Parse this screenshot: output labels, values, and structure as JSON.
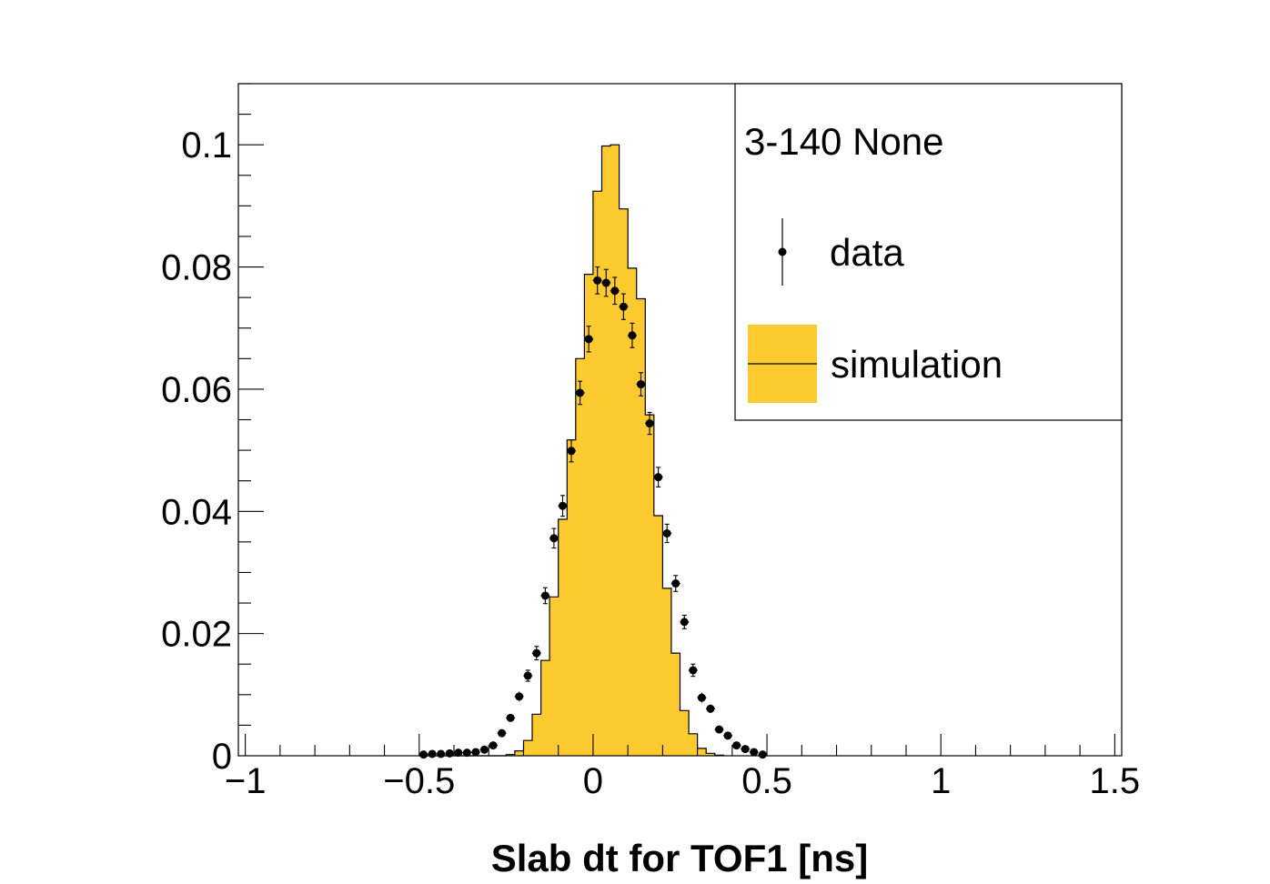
{
  "chart_data": {
    "type": "bar",
    "xlabel": "Slab dt for TOF1 [ns]",
    "ylabel": "",
    "xlim": [
      -1.02,
      1.52
    ],
    "ylim": [
      0,
      0.11
    ],
    "x_ticks": [
      -1,
      -0.5,
      0,
      0.5,
      1,
      1.5
    ],
    "x_tick_labels": [
      "−1",
      "−0.5",
      "0",
      "0.5",
      "1",
      "1.5"
    ],
    "y_ticks": [
      0,
      0.02,
      0.04,
      0.06,
      0.08,
      0.1
    ],
    "y_tick_labels": [
      "0",
      "0.02",
      "0.04",
      "0.06",
      "0.08",
      "0.1"
    ],
    "legend": {
      "title": "3-140 None",
      "position": "top-right",
      "entries": [
        "data",
        "simulation"
      ]
    },
    "bin_width": 0.025,
    "simulation": {
      "name": "simulation",
      "color": "#FDCA30",
      "edges_start": -0.5,
      "values": [
        0,
        0,
        0,
        0,
        0,
        0,
        0,
        0,
        0,
        0,
        0.0002,
        0.0008,
        0.0025,
        0.0068,
        0.0156,
        0.026,
        0.0387,
        0.0517,
        0.065,
        0.0788,
        0.0924,
        0.0998,
        0.1,
        0.0895,
        0.0798,
        0.0748,
        0.0558,
        0.0393,
        0.0274,
        0.0168,
        0.0074,
        0.0036,
        0.0012,
        0.0004,
        0.0001
      ]
    },
    "data": {
      "name": "data",
      "color": "#000000",
      "x": [
        -0.4875,
        -0.4625,
        -0.4375,
        -0.4125,
        -0.3875,
        -0.3625,
        -0.3375,
        -0.3125,
        -0.2875,
        -0.2625,
        -0.2375,
        -0.2125,
        -0.1875,
        -0.1625,
        -0.1375,
        -0.1125,
        -0.0875,
        -0.0625,
        -0.0375,
        -0.0125,
        0.0125,
        0.0375,
        0.0625,
        0.0875,
        0.1125,
        0.1375,
        0.1625,
        0.1875,
        0.2125,
        0.2375,
        0.2625,
        0.2875,
        0.3125,
        0.3375,
        0.3625,
        0.3875,
        0.4125,
        0.4375,
        0.4625,
        0.4875
      ],
      "y": [
        0.0002,
        0.0003,
        0.0003,
        0.0004,
        0.0005,
        0.0005,
        0.0006,
        0.001,
        0.0017,
        0.0037,
        0.0062,
        0.0097,
        0.0131,
        0.0168,
        0.0262,
        0.0356,
        0.0409,
        0.0499,
        0.0594,
        0.0682,
        0.0778,
        0.0774,
        0.0761,
        0.0735,
        0.0688,
        0.0608,
        0.0544,
        0.0456,
        0.0364,
        0.0282,
        0.0219,
        0.014,
        0.0095,
        0.0077,
        0.0043,
        0.0033,
        0.0017,
        0.0011,
        0.0006,
        0.0002
      ],
      "yerr": [
        0.0001,
        0.0001,
        0.0001,
        0.0001,
        0.0001,
        0.0001,
        0.0001,
        0.0002,
        0.0003,
        0.0005,
        0.0006,
        0.0008,
        0.0009,
        0.0011,
        0.0013,
        0.0016,
        0.0017,
        0.0018,
        0.0019,
        0.0021,
        0.0022,
        0.0022,
        0.0022,
        0.0021,
        0.002,
        0.0019,
        0.0018,
        0.0016,
        0.0015,
        0.0013,
        0.0011,
        0.001,
        0.0008,
        0.0007,
        0.0005,
        0.0005,
        0.0003,
        0.0003,
        0.0002,
        0.0001
      ]
    }
  }
}
